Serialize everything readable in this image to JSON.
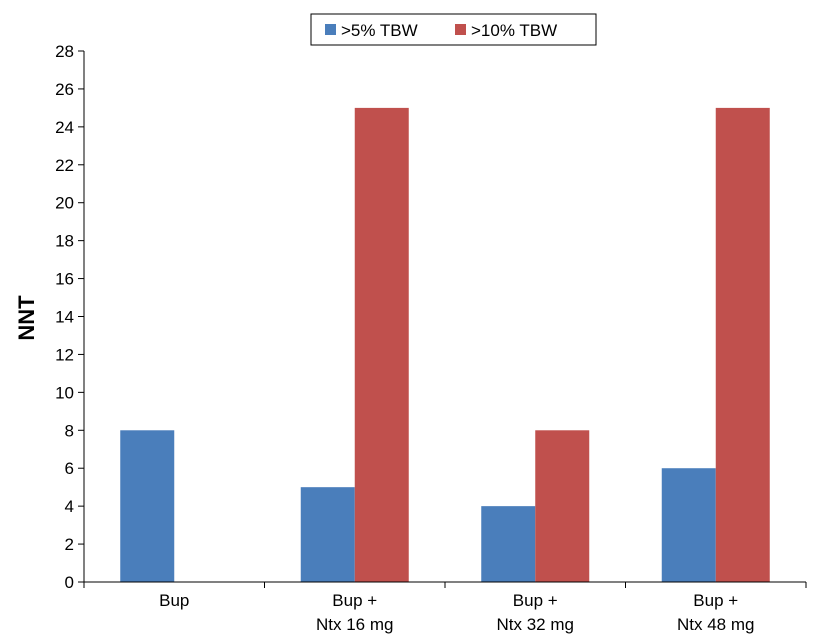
{
  "chart_data": {
    "type": "bar",
    "title": "",
    "xlabel": "",
    "ylabel": "NNT",
    "ylim": [
      0,
      28
    ],
    "ytick_step": 2,
    "grid": false,
    "legend_position": "top-center",
    "categories": [
      [
        "Bup"
      ],
      [
        "Bup +",
        "Ntx 16 mg"
      ],
      [
        "Bup +",
        "Ntx 32 mg"
      ],
      [
        "Bup +",
        "Ntx 48 mg"
      ]
    ],
    "series": [
      {
        "name": ">5% TBW",
        "color": "#4a7ebb",
        "values": [
          8,
          5,
          4,
          6
        ]
      },
      {
        "name": ">10% TBW",
        "color": "#c0504d",
        "values": [
          null,
          25,
          8,
          25
        ]
      }
    ]
  }
}
